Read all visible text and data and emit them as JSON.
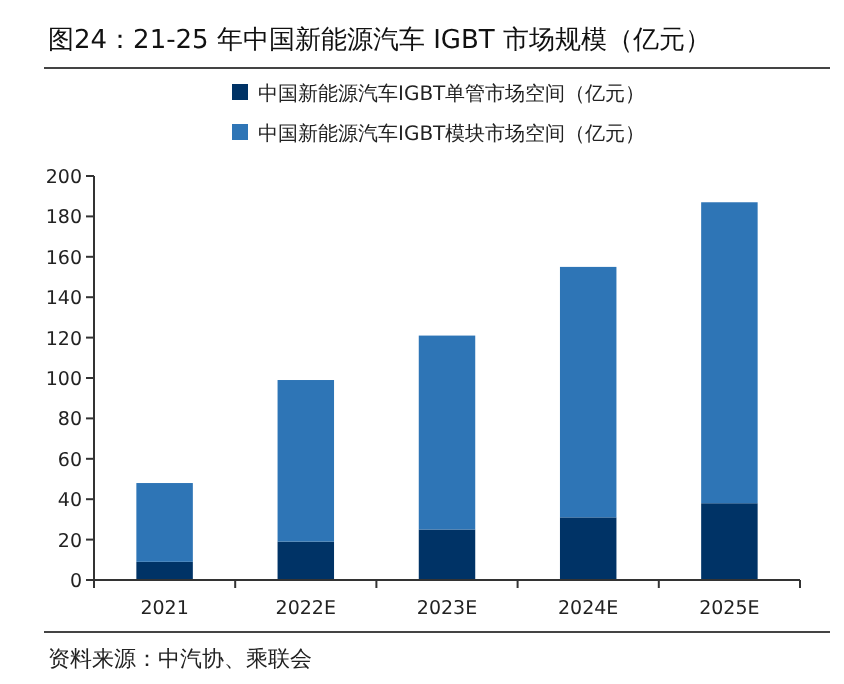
{
  "chart_data": {
    "type": "bar",
    "title": "图24：21-25 年中国新能源汽车 IGBT 市场规模（亿元）",
    "categories": [
      "2021",
      "2022E",
      "2023E",
      "2024E",
      "2025E"
    ],
    "series": [
      {
        "name": "中国新能源汽车IGBT单管市场空间（亿元）",
        "color": "#003366",
        "values": [
          9,
          19,
          25,
          31,
          38
        ]
      },
      {
        "name": "中国新能源汽车IGBT模块市场空间（亿元）",
        "color": "#2e75b6",
        "values": [
          39,
          80,
          96,
          124,
          149
        ]
      }
    ],
    "stacked": true,
    "ylim": [
      0,
      200
    ],
    "yticks": [
      0,
      20,
      40,
      60,
      80,
      100,
      120,
      140,
      160,
      180,
      200
    ],
    "grid": false,
    "legend": "top",
    "annotations": [
      "资料来源：中汽协、乘联会"
    ]
  }
}
